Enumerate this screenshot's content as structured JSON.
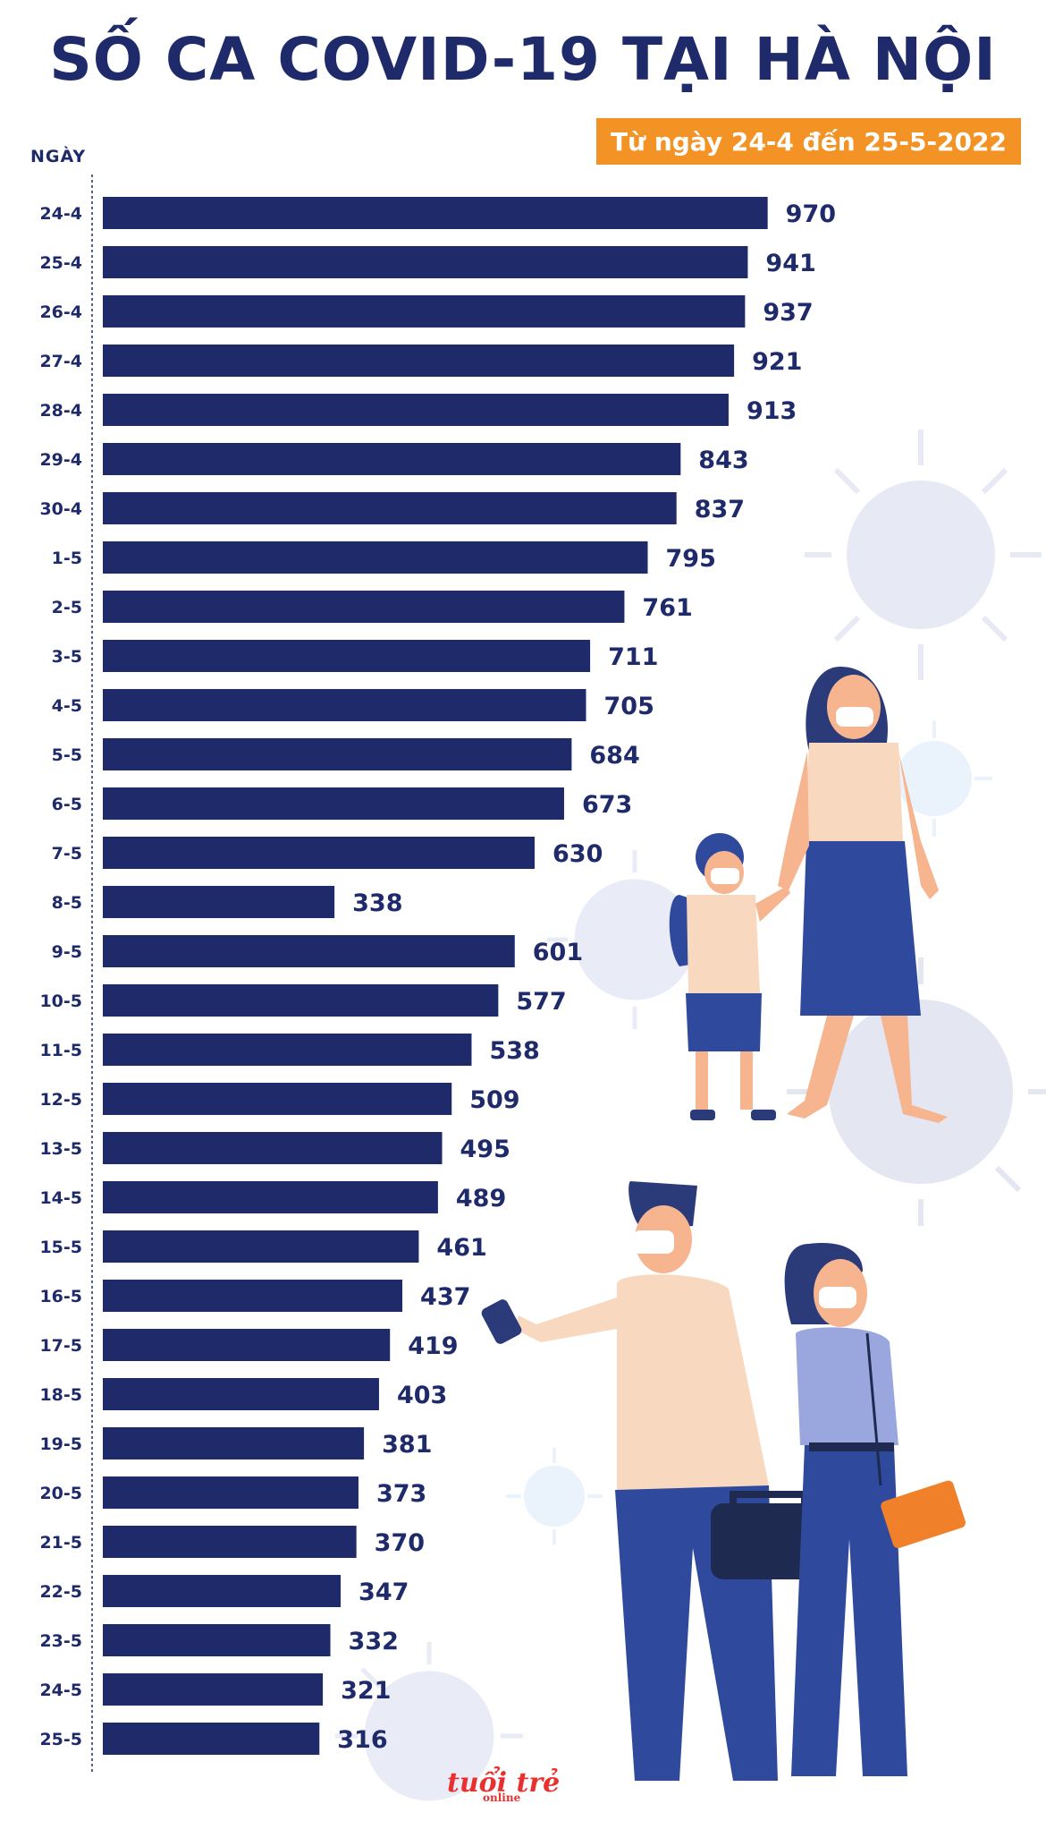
{
  "title": "SỐ CA COVID-19 TẠI HÀ NỘI",
  "subtitle": "Từ ngày 24-4 đến 25-5-2022",
  "axis_header": "NGÀY",
  "logo": {
    "main": "tuổi trẻ",
    "sub": "online"
  },
  "colors": {
    "bar": "#1f2a6b",
    "accent": "#f39325",
    "background_decor": "#e6e8f4",
    "logo": "#e8312f"
  },
  "chart_data": {
    "type": "bar",
    "orientation": "horizontal",
    "title": "SỐ CA COVID-19 TẠI HÀ NỘI",
    "subtitle": "Từ ngày 24-4 đến 25-5-2022",
    "ylabel": "NGÀY",
    "xlabel": "",
    "grid": false,
    "categories": [
      "24-4",
      "25-4",
      "26-4",
      "27-4",
      "28-4",
      "29-4",
      "30-4",
      "1-5",
      "2-5",
      "3-5",
      "4-5",
      "5-5",
      "6-5",
      "7-5",
      "8-5",
      "9-5",
      "10-5",
      "11-5",
      "12-5",
      "13-5",
      "14-5",
      "15-5",
      "16-5",
      "17-5",
      "18-5",
      "19-5",
      "20-5",
      "21-5",
      "22-5",
      "23-5",
      "24-5",
      "25-5"
    ],
    "values": [
      970,
      941,
      937,
      921,
      913,
      843,
      837,
      795,
      761,
      711,
      705,
      684,
      673,
      630,
      338,
      601,
      577,
      538,
      509,
      495,
      489,
      461,
      437,
      419,
      403,
      381,
      373,
      370,
      347,
      332,
      321,
      316
    ],
    "xlim": [
      0,
      1000
    ]
  }
}
